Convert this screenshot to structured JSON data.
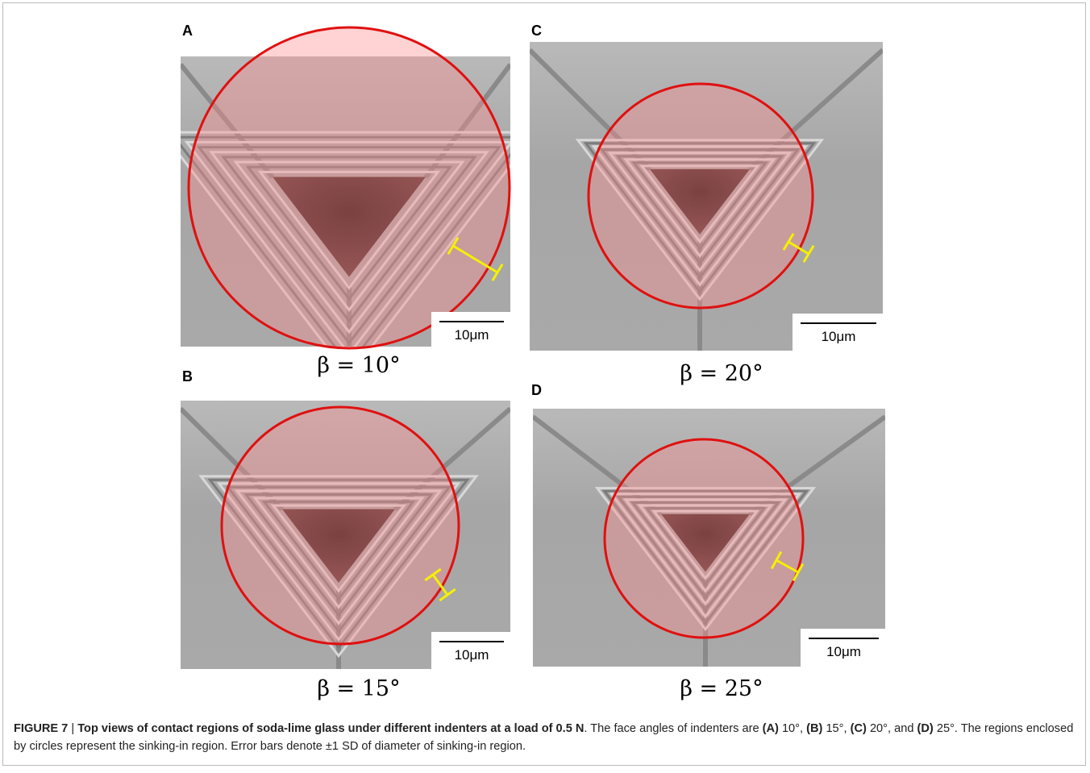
{
  "figure": {
    "panels": [
      {
        "label": "A",
        "scale_bar": "10μm",
        "angle": "β = 10°"
      },
      {
        "label": "B",
        "scale_bar": "10μm",
        "angle": "β = 15°"
      },
      {
        "label": "C",
        "scale_bar": "10μm",
        "angle": "β = 20°"
      },
      {
        "label": "D",
        "scale_bar": "10μm",
        "angle": "β = 25°"
      }
    ],
    "caption": {
      "segments": [
        "FIGURE 7",
        " | ",
        "Top views of contact regions of soda-lime glass under different indenters at a load of 0.5 N",
        ". The face angles of indenters are ",
        "(A)",
        " 10°, ",
        "(B)",
        " 15°, ",
        "(C)",
        " 20°, and ",
        "(D)",
        " 25°. The regions enclosed by circles represent the sinking-in region. Error bars denote ±1 SD of diameter of sinking-in region."
      ]
    }
  }
}
